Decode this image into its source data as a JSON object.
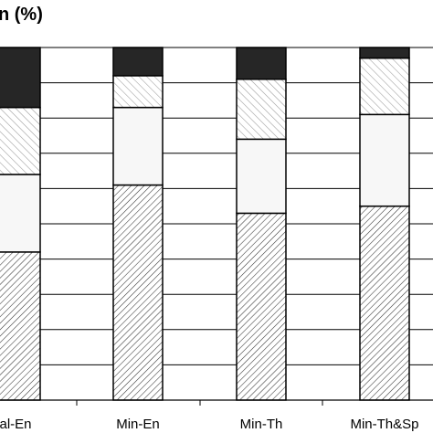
{
  "chart_data": {
    "type": "bar",
    "stacked": true,
    "percent": true,
    "title": "n (%)",
    "xlabel": "",
    "ylabel": "",
    "ylim": [
      0,
      100
    ],
    "grid": true,
    "categories": [
      "al-En",
      "Min-En",
      "Min-Th",
      "Min-Th&Sp"
    ],
    "series": [
      {
        "pattern": "dense-diagonal-hatch",
        "color": "#ffffff",
        "values": [
          42,
          61,
          53,
          55
        ]
      },
      {
        "pattern": "solid-light",
        "color": "#f7f7f7",
        "values": [
          22,
          22,
          21,
          26
        ]
      },
      {
        "pattern": "sparse-diagonal-hatch",
        "color": "#ffffff",
        "values": [
          19,
          9,
          17,
          16
        ]
      },
      {
        "pattern": "solid-dark",
        "color": "#262626",
        "values": [
          17,
          8,
          9,
          3
        ]
      }
    ]
  }
}
